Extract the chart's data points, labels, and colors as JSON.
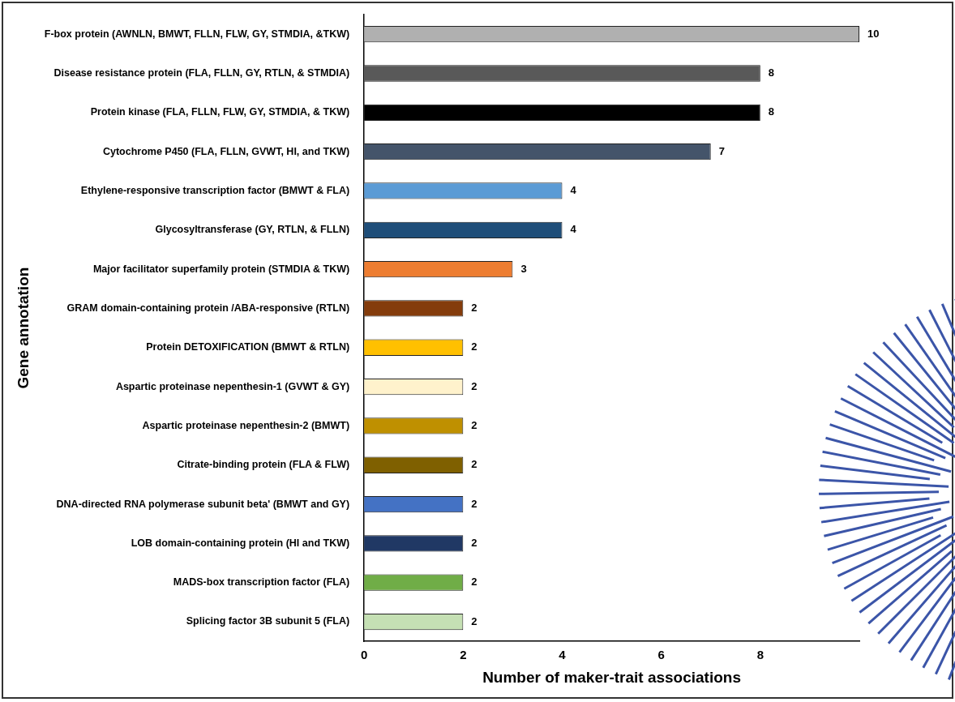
{
  "chart_data": {
    "type": "bar",
    "orientation": "horizontal",
    "xlabel": "Number of maker-trait associations",
    "ylabel": "Gene annotation",
    "categories": [
      "F-box protein (AWNLN, BMWT, FLLN, FLW, GY, STMDIA, &TKW)",
      "Disease resistance protein (FLA, FLLN, GY, RTLN, & STMDIA)",
      "Protein kinase (FLA, FLLN, FLW, GY, STMDIA, & TKW)",
      "Cytochrome P450 (FLA, FLLN, GVWT, HI, and TKW)",
      "Ethylene-responsive transcription factor (BMWT & FLA)",
      "Glycosyltransferase (GY, RTLN, & FLLN)",
      "Major facilitator superfamily protein (STMDIA & TKW)",
      "GRAM domain-containing protein /ABA-responsive (RTLN)",
      "Protein DETOXIFICATION (BMWT & RTLN)",
      "Aspartic proteinase nepenthesin-1 (GVWT & GY)",
      "Aspartic proteinase nepenthesin-2 (BMWT)",
      "Citrate-binding protein (FLA & FLW)",
      "DNA-directed RNA polymerase subunit beta' (BMWT and GY)",
      "LOB domain-containing protein (HI and TKW)",
      "MADS-box transcription factor (FLA)",
      "Splicing factor 3B subunit 5 (FLA)"
    ],
    "values": [
      10,
      8,
      8,
      7,
      4,
      4,
      3,
      2,
      2,
      2,
      2,
      2,
      2,
      2,
      2,
      2
    ],
    "colors": [
      "#b0b0b0",
      "#595959",
      "#000000",
      "#44546a",
      "#5b9bd5",
      "#1f4e79",
      "#ed7d31",
      "#843c0c",
      "#ffc000",
      "#fff2cc",
      "#bf9000",
      "#7f6000",
      "#4472c4",
      "#203864",
      "#70ad47",
      "#c5e0b4"
    ],
    "xlim": [
      0,
      10
    ],
    "xticks": [
      0,
      2,
      4,
      6,
      8
    ],
    "data_labels": true,
    "grid": false,
    "legend": false
  }
}
